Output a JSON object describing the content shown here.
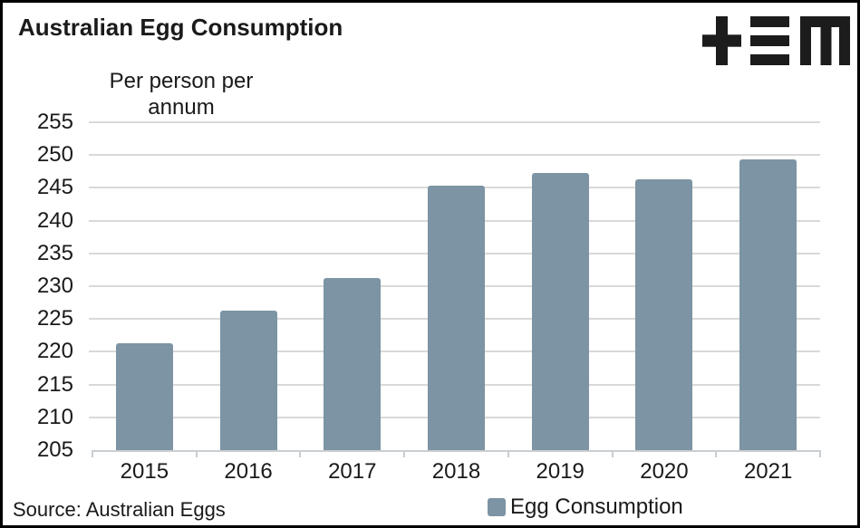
{
  "header": {
    "title": "Australian Egg Consumption",
    "logo_monogram": "+≡M"
  },
  "chart_data": {
    "type": "bar",
    "title": "Australian Egg Consumption",
    "y_axis_title_lines": [
      "Per person per",
      "annum"
    ],
    "categories": [
      "2015",
      "2016",
      "2017",
      "2018",
      "2019",
      "2020",
      "2021"
    ],
    "series": [
      {
        "name": "Egg Consumption",
        "values": [
          221.3,
          226.3,
          231.3,
          245.3,
          247.3,
          246.3,
          249.3
        ]
      }
    ],
    "ylim": [
      205,
      255
    ],
    "yticks": [
      255,
      250,
      245,
      240,
      235,
      230,
      225,
      220,
      215,
      210,
      205
    ],
    "grid": true,
    "legend_position": "bottom",
    "source": "Source: Australian Eggs"
  },
  "footer": {
    "source": "Source: Australian Eggs",
    "legend": {
      "label": "Egg Consumption"
    }
  },
  "colors": {
    "accent": "#7c94a3",
    "gridline": "#d9d9d9",
    "axis_line": "#c9ced2",
    "text": "#1a1a1a",
    "border": "#000000",
    "logo": "#1c1c1c"
  }
}
